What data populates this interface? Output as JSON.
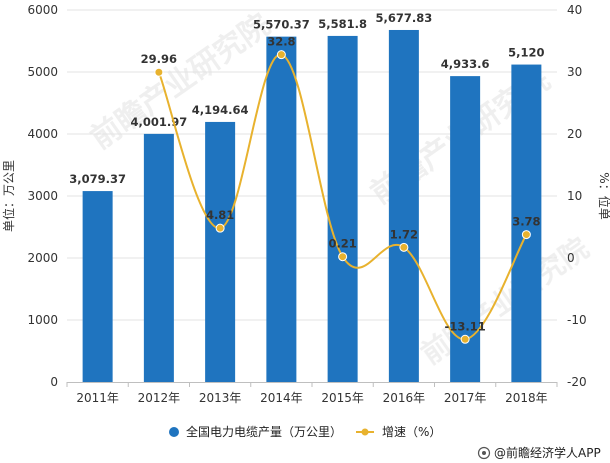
{
  "chart_data": {
    "type": "bar+line",
    "categories": [
      "2011年",
      "2012年",
      "2013年",
      "2014年",
      "2015年",
      "2016年",
      "2017年",
      "2018年"
    ],
    "series": [
      {
        "name": "全国电力电缆产量（万公里）",
        "type": "bar",
        "axis": "left",
        "values": [
          3079.37,
          4001.97,
          4194.64,
          5570.37,
          5581.8,
          5677.83,
          4933.6,
          5120
        ],
        "labels": [
          "3,079.37",
          "4,001.97",
          "4,194.64",
          "5,570.37",
          "5,581.8",
          "5,677.83",
          "4,933.6",
          "5,120"
        ],
        "color": "#1f74bf"
      },
      {
        "name": "增速（%）",
        "type": "line",
        "axis": "right",
        "x": [
          "2012年",
          "2013年",
          "2014年",
          "2015年",
          "2016年",
          "2017年",
          "2018年"
        ],
        "values": [
          29.96,
          4.81,
          32.8,
          0.21,
          1.72,
          -13.11,
          3.78
        ],
        "labels": [
          "29.96",
          "4.81",
          "32.8",
          "0.21",
          "1.72",
          "-13.11",
          "3.78"
        ],
        "color": "#e8b22e"
      }
    ],
    "yleft": {
      "label": "单位：万公里",
      "ylim": [
        0,
        6000
      ],
      "ticks": [
        "0",
        "1000",
        "2000",
        "3000",
        "4000",
        "5000",
        "6000"
      ]
    },
    "yright": {
      "label": "%：位单",
      "ylim": [
        -20,
        40
      ],
      "ticks": [
        "-20",
        "-10",
        "0",
        "10",
        "20",
        "30",
        "40"
      ]
    },
    "grid": true,
    "legend_position": "bottom"
  },
  "legend": {
    "bar_label": "全国电力电缆产量（万公里）",
    "line_label": "增速（%）"
  },
  "source": {
    "text": "@前瞻经济学人APP"
  },
  "watermark": {
    "text": "前瞻产业研究院"
  }
}
